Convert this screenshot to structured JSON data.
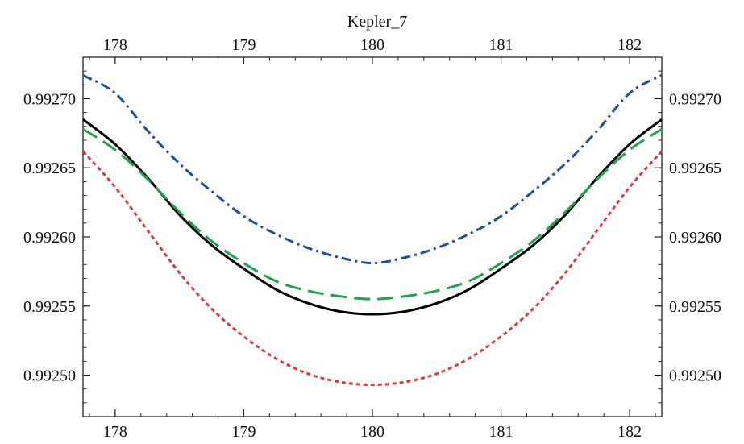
{
  "chart_data": {
    "type": "line",
    "title": "Kepler_7",
    "xlabel": "",
    "ylabel": "",
    "xlim": [
      177.75,
      182.25
    ],
    "ylim": [
      0.99247,
      0.99273
    ],
    "x_ticks": [
      178,
      179,
      180,
      181,
      182
    ],
    "x_tick_labels": [
      "178",
      "179",
      "180",
      "181",
      "182"
    ],
    "y_ticks": [
      0.9925,
      0.99255,
      0.9926,
      0.99265,
      0.9927
    ],
    "y_tick_labels": [
      "0.99250",
      "0.99255",
      "0.99260",
      "0.99265",
      "0.99270"
    ],
    "grid": false,
    "legend": "none",
    "x": [
      177.75,
      178.0,
      178.25,
      178.5,
      178.75,
      179.0,
      179.25,
      179.5,
      179.75,
      180.0,
      180.25,
      180.5,
      180.75,
      181.0,
      181.25,
      181.5,
      181.75,
      182.0,
      182.25
    ],
    "series": [
      {
        "color": "#1f4fa0",
        "style": "dash-dot",
        "values": [
          0.992717,
          0.992704,
          0.992677,
          0.992653,
          0.992633,
          0.992615,
          0.992602,
          0.992592,
          0.992585,
          0.992581,
          0.992585,
          0.992592,
          0.992602,
          0.992615,
          0.992633,
          0.992653,
          0.992677,
          0.992704,
          0.992717
        ]
      },
      {
        "color": "#000000",
        "style": "solid",
        "values": [
          0.992685,
          0.992667,
          0.992643,
          0.992616,
          0.992594,
          0.992577,
          0.992562,
          0.992552,
          0.992546,
          0.992544,
          0.992546,
          0.992552,
          0.992562,
          0.992577,
          0.992594,
          0.992616,
          0.992643,
          0.992667,
          0.992685
        ]
      },
      {
        "color": "#1aa64a",
        "style": "dashed",
        "values": [
          0.992678,
          0.992663,
          0.992642,
          0.992618,
          0.992597,
          0.992581,
          0.992568,
          0.992561,
          0.992557,
          0.992555,
          0.992557,
          0.992561,
          0.992568,
          0.992581,
          0.992597,
          0.992618,
          0.992642,
          0.992663,
          0.992678
        ]
      },
      {
        "color": "#e03a3a",
        "style": "dotted",
        "values": [
          0.992662,
          0.992636,
          0.992605,
          0.992574,
          0.992548,
          0.992528,
          0.992512,
          0.992501,
          0.992495,
          0.992493,
          0.992495,
          0.992501,
          0.992512,
          0.992528,
          0.992548,
          0.992574,
          0.992605,
          0.992636,
          0.992662
        ]
      }
    ]
  }
}
